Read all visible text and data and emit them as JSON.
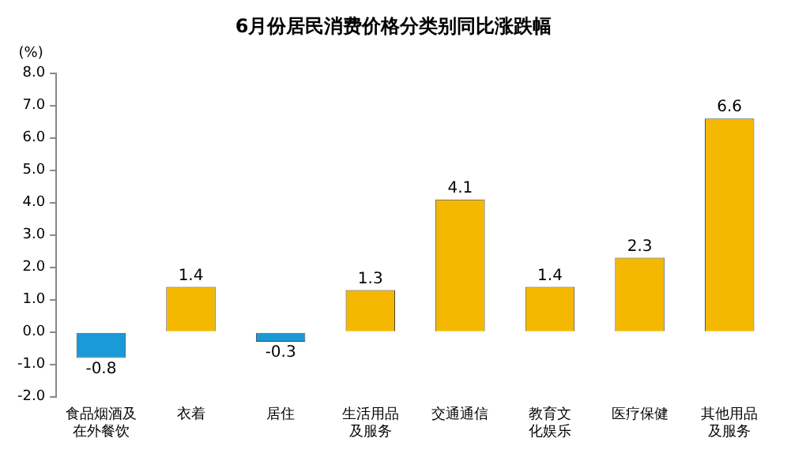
{
  "chart_data": {
    "type": "bar",
    "title": "6月份居民消费价格分类别同比涨跌幅",
    "ylabel": "(%)",
    "categories": [
      "食品烟酒及在外餐饮",
      "衣着",
      "居住",
      "生活用品及服务",
      "交通通信",
      "教育文化娱乐",
      "医疗保健",
      "其他用品及服务"
    ],
    "values": [
      -0.8,
      1.4,
      -0.3,
      1.3,
      4.1,
      1.4,
      2.3,
      6.6
    ],
    "colors": [
      "#1a9ad6",
      "#f5b800",
      "#1a9ad6",
      "#f5b800",
      "#f5b800",
      "#f5b800",
      "#f5b800",
      "#f5b800"
    ],
    "ylim": [
      -2,
      8
    ],
    "yticks": [
      {
        "value": -2,
        "label": "-2.0"
      },
      {
        "value": -1,
        "label": "-1.0"
      },
      {
        "value": 0,
        "label": "0.0"
      },
      {
        "value": 1,
        "label": "1.0"
      },
      {
        "value": 2,
        "label": "2.0"
      },
      {
        "value": 3,
        "label": "3.0"
      },
      {
        "value": 4,
        "label": "4.0"
      },
      {
        "value": 5,
        "label": "5.0"
      },
      {
        "value": 6,
        "label": "6.0"
      },
      {
        "value": 7,
        "label": "7.0"
      },
      {
        "value": 8,
        "label": "8.0"
      }
    ],
    "data_labels": true,
    "grid": false,
    "legend": false
  }
}
